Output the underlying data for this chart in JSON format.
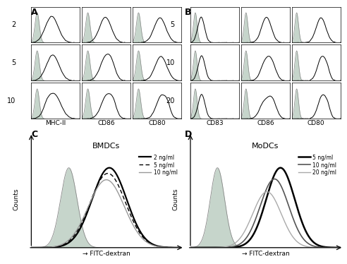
{
  "panel_A_label": "A",
  "panel_B_label": "B",
  "panel_C_label": "C",
  "panel_D_label": "D",
  "A_rows": [
    "2",
    "5",
    "10"
  ],
  "A_cols": [
    "MHC-II",
    "CD86",
    "CD80"
  ],
  "B_rows": [
    "5",
    "10",
    "20"
  ],
  "B_cols": [
    "CD83",
    "CD86",
    "CD80"
  ],
  "C_title": "BMDCs",
  "D_title": "MoDCs",
  "C_legend": [
    "2 ng/ml",
    "5 ng/ml",
    "10 ng/ml"
  ],
  "D_legend": [
    "5 ng/ml",
    "10 ng/ml",
    "20 ng/ml"
  ],
  "fill_color": "#a8bfb0",
  "fill_alpha": 0.65,
  "background": "#ffffff"
}
